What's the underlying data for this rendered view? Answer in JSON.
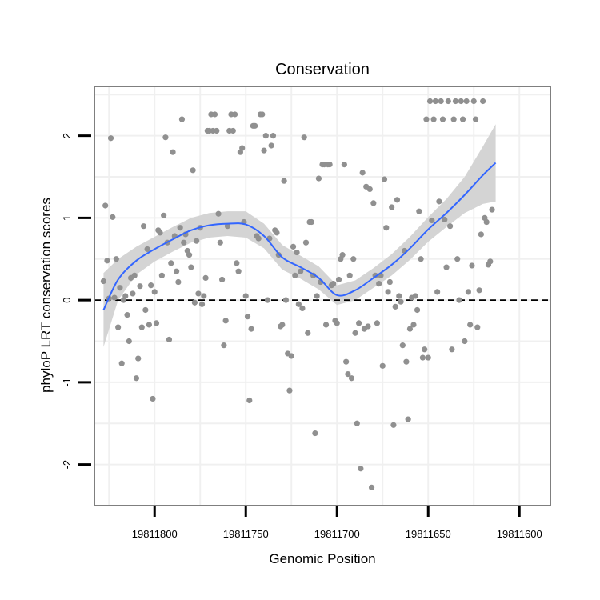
{
  "chart_data": {
    "type": "scatter",
    "title": "Conservation",
    "xlabel": "Genomic Position",
    "ylabel": "phyloP LRT conservation scores",
    "x_reversed": true,
    "xlim": [
      19811833,
      19811583
    ],
    "ylim": [
      -2.5,
      2.6
    ],
    "x_ticks": [
      19811800,
      19811750,
      19811700,
      19811650,
      19811600
    ],
    "x_tick_labels": [
      "19811800",
      "19811750",
      "19811700",
      "19811650",
      "19811600"
    ],
    "y_ticks": [
      -2,
      -1,
      0,
      1,
      2
    ],
    "y_tick_labels": [
      "-2",
      "-1",
      "0",
      "1",
      "2"
    ],
    "grid": true,
    "reference_line": {
      "y": 0,
      "style": "dashed"
    },
    "colors": {
      "points": "#909090",
      "smooth": "#3366ff",
      "ribbon": "#d4d4d4",
      "grid": "#f0f0f0",
      "border": "#7f7f7f"
    },
    "points": [
      [
        19811828,
        0.23
      ],
      [
        19811827,
        1.15
      ],
      [
        19811826,
        0.48
      ],
      [
        19811825,
        0.02
      ],
      [
        19811824,
        1.97
      ],
      [
        19811823,
        1.01
      ],
      [
        19811822,
        0.03
      ],
      [
        19811821,
        0.5
      ],
      [
        19811820,
        -0.33
      ],
      [
        19811819,
        0.15
      ],
      [
        19811818,
        -0.77
      ],
      [
        19811817,
        0.0
      ],
      [
        19811816,
        0.05
      ],
      [
        19811815,
        -0.18
      ],
      [
        19811814,
        -0.5
      ],
      [
        19811813,
        0.27
      ],
      [
        19811812,
        0.08
      ],
      [
        19811811,
        0.3
      ],
      [
        19811810,
        -0.95
      ],
      [
        19811809,
        -0.71
      ],
      [
        19811808,
        0.17
      ],
      [
        19811807,
        -0.33
      ],
      [
        19811806,
        0.9
      ],
      [
        19811805,
        -0.12
      ],
      [
        19811804,
        0.62
      ],
      [
        19811803,
        -0.3
      ],
      [
        19811802,
        0.18
      ],
      [
        19811801,
        -1.2
      ],
      [
        19811800,
        0.1
      ],
      [
        19811799,
        -0.28
      ],
      [
        19811798,
        0.85
      ],
      [
        19811797,
        0.82
      ],
      [
        19811796,
        0.3
      ],
      [
        19811795,
        1.03
      ],
      [
        19811794,
        1.98
      ],
      [
        19811793,
        0.7
      ],
      [
        19811792,
        -0.48
      ],
      [
        19811791,
        0.45
      ],
      [
        19811790,
        1.8
      ],
      [
        19811789,
        0.78
      ],
      [
        19811788,
        0.35
      ],
      [
        19811787,
        0.22
      ],
      [
        19811786,
        0.88
      ],
      [
        19811785,
        2.2
      ],
      [
        19811784,
        0.7
      ],
      [
        19811783,
        0.8
      ],
      [
        19811782,
        0.6
      ],
      [
        19811781,
        0.55
      ],
      [
        19811780,
        0.4
      ],
      [
        19811779,
        1.58
      ],
      [
        19811778,
        -0.03
      ],
      [
        19811777,
        0.72
      ],
      [
        19811776,
        0.08
      ],
      [
        19811775,
        0.88
      ],
      [
        19811774,
        -0.05
      ],
      [
        19811773,
        0.05
      ],
      [
        19811772,
        0.27
      ],
      [
        19811771,
        2.06
      ],
      [
        19811770,
        2.06
      ],
      [
        19811769,
        2.26
      ],
      [
        19811768,
        2.06
      ],
      [
        19811767,
        2.26
      ],
      [
        19811766,
        2.06
      ],
      [
        19811765,
        1.05
      ],
      [
        19811764,
        0.7
      ],
      [
        19811763,
        0.25
      ],
      [
        19811762,
        -0.55
      ],
      [
        19811761,
        -0.25
      ],
      [
        19811760,
        0.9
      ],
      [
        19811759,
        2.06
      ],
      [
        19811758,
        2.26
      ],
      [
        19811757,
        2.06
      ],
      [
        19811756,
        2.26
      ],
      [
        19811755,
        0.45
      ],
      [
        19811754,
        0.35
      ],
      [
        19811753,
        1.8
      ],
      [
        19811752,
        1.85
      ],
      [
        19811751,
        0.95
      ],
      [
        19811750,
        0.05
      ],
      [
        19811749,
        -0.2
      ],
      [
        19811748,
        -1.22
      ],
      [
        19811747,
        -0.35
      ],
      [
        19811746,
        2.12
      ],
      [
        19811745,
        2.12
      ],
      [
        19811744,
        0.78
      ],
      [
        19811743,
        0.75
      ],
      [
        19811742,
        2.26
      ],
      [
        19811741,
        2.26
      ],
      [
        19811740,
        1.82
      ],
      [
        19811739,
        2.0
      ],
      [
        19811738,
        0.0
      ],
      [
        19811737,
        0.75
      ],
      [
        19811736,
        1.88
      ],
      [
        19811735,
        2.0
      ],
      [
        19811734,
        0.85
      ],
      [
        19811733,
        0.82
      ],
      [
        19811732,
        0.55
      ],
      [
        19811731,
        -0.32
      ],
      [
        19811730,
        -0.3
      ],
      [
        19811729,
        1.45
      ],
      [
        19811728,
        0.0
      ],
      [
        19811727,
        -0.65
      ],
      [
        19811726,
        -1.1
      ],
      [
        19811725,
        -0.68
      ],
      [
        19811724,
        0.65
      ],
      [
        19811723,
        0.3
      ],
      [
        19811722,
        0.58
      ],
      [
        19811721,
        -0.05
      ],
      [
        19811720,
        0.35
      ],
      [
        19811719,
        -0.1
      ],
      [
        19811718,
        1.98
      ],
      [
        19811717,
        0.7
      ],
      [
        19811716,
        -0.4
      ],
      [
        19811715,
        0.95
      ],
      [
        19811714,
        0.95
      ],
      [
        19811713,
        0.3
      ],
      [
        19811712,
        -1.62
      ],
      [
        19811711,
        0.05
      ],
      [
        19811710,
        1.48
      ],
      [
        19811709,
        0.22
      ],
      [
        19811708,
        1.65
      ],
      [
        19811707,
        1.65
      ],
      [
        19811706,
        -0.3
      ],
      [
        19811705,
        1.65
      ],
      [
        19811704,
        1.65
      ],
      [
        19811703,
        0.18
      ],
      [
        19811702,
        0.2
      ],
      [
        19811701,
        -0.25
      ],
      [
        19811700,
        -0.28
      ],
      [
        19811699,
        0.25
      ],
      [
        19811698,
        0.5
      ],
      [
        19811697,
        0.55
      ],
      [
        19811696,
        1.65
      ],
      [
        19811695,
        -0.75
      ],
      [
        19811694,
        -0.9
      ],
      [
        19811693,
        0.3
      ],
      [
        19811692,
        -0.95
      ],
      [
        19811691,
        0.5
      ],
      [
        19811690,
        -0.4
      ],
      [
        19811689,
        -1.5
      ],
      [
        19811688,
        -0.28
      ],
      [
        19811687,
        -2.05
      ],
      [
        19811686,
        1.55
      ],
      [
        19811685,
        -0.35
      ],
      [
        19811684,
        1.38
      ],
      [
        19811683,
        -0.32
      ],
      [
        19811682,
        1.35
      ],
      [
        19811681,
        -2.28
      ],
      [
        19811680,
        1.18
      ],
      [
        19811679,
        0.3
      ],
      [
        19811678,
        -0.28
      ],
      [
        19811677,
        0.2
      ],
      [
        19811676,
        0.3
      ],
      [
        19811675,
        -0.8
      ],
      [
        19811674,
        1.47
      ],
      [
        19811673,
        0.88
      ],
      [
        19811672,
        0.1
      ],
      [
        19811671,
        0.22
      ],
      [
        19811670,
        1.13
      ],
      [
        19811669,
        -1.52
      ],
      [
        19811668,
        -0.08
      ],
      [
        19811667,
        1.22
      ],
      [
        19811666,
        0.05
      ],
      [
        19811665,
        -0.02
      ],
      [
        19811664,
        -0.55
      ],
      [
        19811663,
        0.6
      ],
      [
        19811662,
        -0.75
      ],
      [
        19811661,
        -1.45
      ],
      [
        19811660,
        -0.35
      ],
      [
        19811659,
        0.03
      ],
      [
        19811658,
        -0.3
      ],
      [
        19811657,
        0.05
      ],
      [
        19811656,
        -0.12
      ],
      [
        19811655,
        1.08
      ],
      [
        19811654,
        0.5
      ],
      [
        19811653,
        -0.7
      ],
      [
        19811652,
        -0.6
      ],
      [
        19811651,
        2.2
      ],
      [
        19811650,
        -0.7
      ],
      [
        19811649,
        2.42
      ],
      [
        19811648,
        0.97
      ],
      [
        19811647,
        2.2
      ],
      [
        19811646,
        2.42
      ],
      [
        19811645,
        0.1
      ],
      [
        19811644,
        1.2
      ],
      [
        19811643,
        2.42
      ],
      [
        19811642,
        2.2
      ],
      [
        19811641,
        0.98
      ],
      [
        19811640,
        0.4
      ],
      [
        19811639,
        2.42
      ],
      [
        19811638,
        0.9
      ],
      [
        19811637,
        -0.6
      ],
      [
        19811636,
        2.2
      ],
      [
        19811635,
        2.42
      ],
      [
        19811634,
        0.5
      ],
      [
        19811633,
        0.0
      ],
      [
        19811632,
        2.42
      ],
      [
        19811631,
        2.2
      ],
      [
        19811630,
        -0.5
      ],
      [
        19811629,
        2.42
      ],
      [
        19811628,
        0.1
      ],
      [
        19811627,
        -0.3
      ],
      [
        19811626,
        0.42
      ],
      [
        19811625,
        2.42
      ],
      [
        19811624,
        2.2
      ],
      [
        19811623,
        -0.33
      ],
      [
        19811622,
        0.12
      ],
      [
        19811621,
        0.8
      ],
      [
        19811620,
        2.42
      ],
      [
        19811619,
        1.0
      ],
      [
        19811618,
        0.95
      ],
      [
        19811617,
        0.43
      ],
      [
        19811616,
        0.47
      ],
      [
        19811615,
        1.1
      ]
    ],
    "smooth": {
      "x": [
        19811828,
        19811820,
        19811810,
        19811800,
        19811790,
        19811780,
        19811770,
        19811760,
        19811750,
        19811740,
        19811730,
        19811720,
        19811710,
        19811700,
        19811690,
        19811680,
        19811670,
        19811660,
        19811650,
        19811640,
        19811630,
        19811620,
        19811613
      ],
      "y": [
        -0.12,
        0.25,
        0.48,
        0.62,
        0.74,
        0.85,
        0.91,
        0.93,
        0.92,
        0.78,
        0.52,
        0.4,
        0.27,
        0.06,
        0.12,
        0.27,
        0.43,
        0.63,
        0.86,
        1.06,
        1.28,
        1.52,
        1.67
      ],
      "ci_half_width": [
        0.45,
        0.25,
        0.17,
        0.15,
        0.15,
        0.15,
        0.15,
        0.15,
        0.16,
        0.15,
        0.15,
        0.14,
        0.14,
        0.12,
        0.12,
        0.12,
        0.13,
        0.14,
        0.15,
        0.17,
        0.22,
        0.35,
        0.47
      ]
    }
  }
}
